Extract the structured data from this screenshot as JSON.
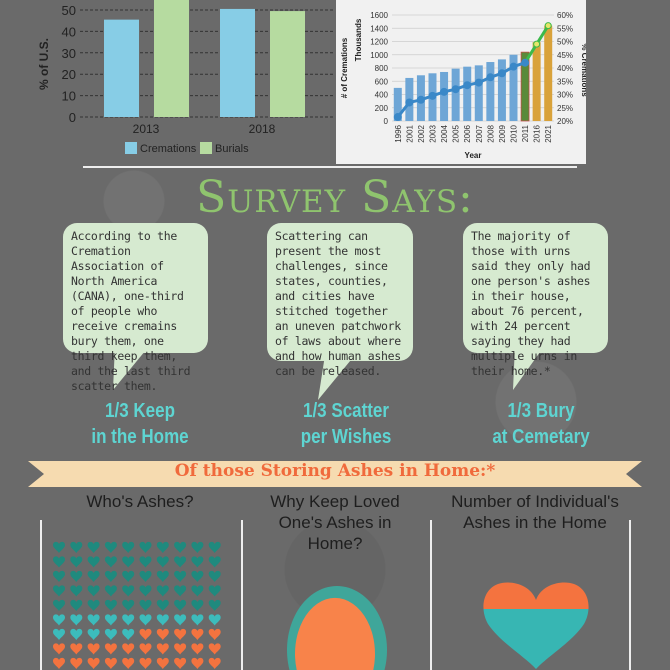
{
  "chart_data": [
    {
      "type": "bar",
      "ylabel": "% of U.S.",
      "categories": [
        "2013",
        "2018"
      ],
      "ylim": [
        0,
        50
      ],
      "yticks": [
        0,
        10,
        20,
        30,
        40,
        50
      ],
      "grid": true,
      "legend": "bottom",
      "series": [
        {
          "name": "Cremations",
          "color": "#87cde6",
          "values": [
            45.5,
            50.5
          ]
        },
        {
          "name": "Burials",
          "color": "#b6dba0",
          "values": [
            55,
            49.5
          ]
        }
      ]
    },
    {
      "type": "bar+line",
      "xlabel": "Year",
      "ylabel": "# of Cremations",
      "ylabel2": "Thousands",
      "y2label": "% Cremations",
      "categories": [
        "1996",
        "2001",
        "2002",
        "2003",
        "2004",
        "2005",
        "2006",
        "2007",
        "2008",
        "2009",
        "2010",
        "2011",
        "2016",
        "2021"
      ],
      "ylim": [
        0,
        1600
      ],
      "yticks": [
        0,
        200,
        400,
        600,
        800,
        1000,
        1200,
        1400,
        1600
      ],
      "y2lim": [
        20,
        60
      ],
      "y2ticks": [
        "20%",
        "25%",
        "30%",
        "35%",
        "40%",
        "45%",
        "50%",
        "55%",
        "60%"
      ],
      "bars": [
        500,
        650,
        690,
        720,
        740,
        790,
        820,
        840,
        890,
        930,
        1000,
        1040,
        1190,
        1440
      ],
      "line": [
        21.5,
        27,
        28,
        29.5,
        31,
        32,
        33.5,
        34.5,
        36.5,
        38,
        40.5,
        42,
        49,
        56
      ]
    }
  ],
  "survey": {
    "title": "Survey Says:",
    "bubbles": [
      "According to the Cremation Association of North America (CANA), one-third of people who receive cremains bury them, one third keep them, and the last third scatter them.",
      "Scattering can present the most challenges, since states, counties, and cities have stitched together an uneven patchwork of laws about where and how human ashes can be released.",
      "The majority of those with urns said they only had one person's ashes in their house, about 76 percent, with 24 percent saying they had multiple urns in their home.*"
    ],
    "stats": [
      {
        "l1": "1/3 Keep",
        "l2": "in the Home"
      },
      {
        "l1": "1/3 Scatter",
        "l2": "per Wishes"
      },
      {
        "l1": "1/3 Bury",
        "l2": "at Cemetary"
      }
    ]
  },
  "storing": {
    "banner": "Of those Storing Ashes in Home:*",
    "columns": [
      "Who's Ashes?",
      "Why Keep Loved One's Ashes in Home?",
      "Number of Individual's Ashes in the Home"
    ],
    "colors": {
      "dark_teal": "#1f8a7e",
      "teal": "#3cbcbc",
      "orange": "#f4733f"
    }
  }
}
